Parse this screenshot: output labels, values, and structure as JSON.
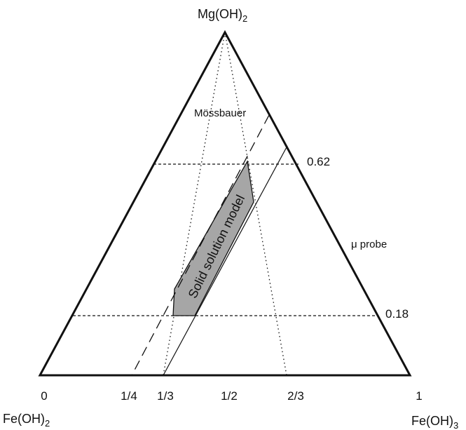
{
  "apex_labels": {
    "top": {
      "base": "Mg(OH)",
      "sub": "2"
    },
    "left": {
      "base": "Fe(OH)",
      "sub": "2"
    },
    "right": {
      "base": "Fe(OH)",
      "sub": "3"
    }
  },
  "axis_ticks": [
    "0",
    "1/4",
    "1/3",
    "1/2",
    "2/3",
    "1"
  ],
  "level_labels": [
    "0.62",
    "0.18"
  ],
  "annotations": {
    "mossbauer": "Mössbauer",
    "mu_probe": "μ probe",
    "region": "Solid solution model"
  },
  "colors": {
    "line": "#111111",
    "region_fill": "#a6a6a6"
  }
}
